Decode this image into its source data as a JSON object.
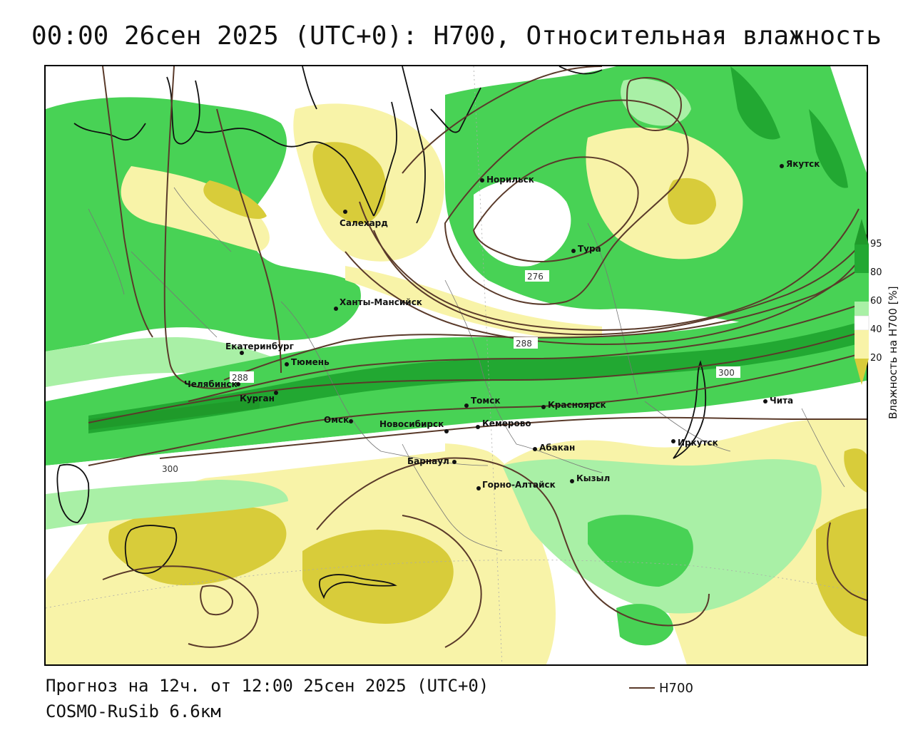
{
  "title": "00:00 26сен 2025 (UTC+0): H700, Относительная влажность",
  "forecast_info": "Прогноз на 12ч. от 12:00 25сен 2025 (UTC+0)",
  "model_name": "COSMO-RuSib 6.6км",
  "legend": {
    "line_label": "H700",
    "line_color": "#5a3a2a"
  },
  "colorbar": {
    "title": "Влажность на H700 [%]",
    "ticks": [
      "95",
      "80",
      "60",
      "40",
      "20"
    ],
    "colors": {
      "above_95": "#1f9a2a",
      "80_95": "#22a832",
      "60_80": "#48d255",
      "50_60": "#a9f0a6",
      "40_50": "#ffffff",
      "20_40": "#f8f3a8",
      "below_20": "#d8cc3a"
    }
  },
  "isohypse_labels": [
    "276",
    "288",
    "288",
    "300",
    "300"
  ],
  "cities": [
    {
      "name": "Норильск"
    },
    {
      "name": "Якутск"
    },
    {
      "name": "Салехард"
    },
    {
      "name": "Тура"
    },
    {
      "name": "Ханты-Мансийск"
    },
    {
      "name": "Екатеринбург"
    },
    {
      "name": "Тюмень"
    },
    {
      "name": "Челябинск"
    },
    {
      "name": "Курган"
    },
    {
      "name": "Омск"
    },
    {
      "name": "Новосибирск"
    },
    {
      "name": "Томск"
    },
    {
      "name": "Кемерово"
    },
    {
      "name": "Красноярск"
    },
    {
      "name": "Барнаул"
    },
    {
      "name": "Абакан"
    },
    {
      "name": "Горно-Алтайск"
    },
    {
      "name": "Кызыл"
    },
    {
      "name": "Иркутск"
    },
    {
      "name": "Чита"
    }
  ]
}
